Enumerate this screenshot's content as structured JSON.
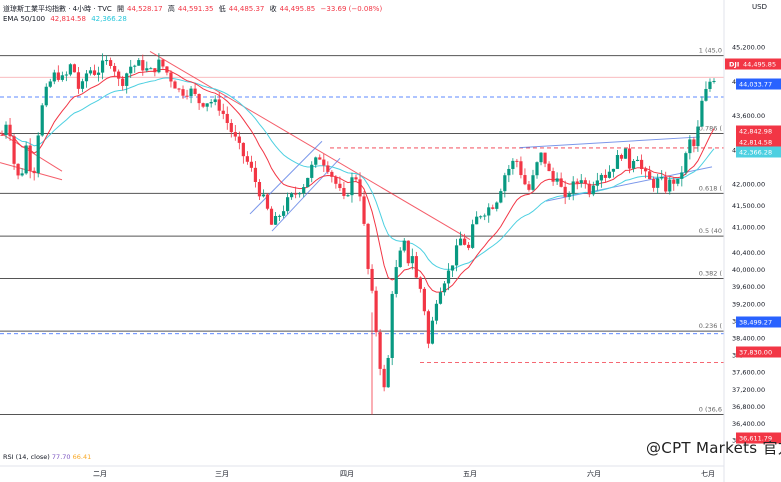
{
  "header": {
    "symbol": "道琼斯工業平均指數 · 4小時 · TVC",
    "open_label": "開",
    "open": "44,528.17",
    "high_label": "高",
    "high": "44,591.35",
    "low_label": "低",
    "low": "44,485.37",
    "close_label": "收",
    "close": "44,495.85",
    "change": "−33.69 (−0.08%)",
    "ema_label": "EMA 50/100",
    "ema50": "42,814.58",
    "ema100": "42,366.28",
    "currency": "USD"
  },
  "rsi": {
    "label": "RSI (14, close)",
    "v1": "77.70",
    "v2": "66.41"
  },
  "watermark": "@CPT Markets 官方",
  "colors": {
    "up": "#089981",
    "down": "#f23645",
    "ema50": "#f23645",
    "ema100": "#4dd0e1",
    "trend": "#5b7ee5",
    "fib": "#555555"
  },
  "chart_data": {
    "type": "candlestick",
    "title": "道琼斯工業平均指數 · 4小時 · TVC",
    "ylim": [
      36015,
      45600
    ],
    "x_labels": [
      "二月",
      "三月",
      "四月",
      "五月",
      "六月",
      "七月"
    ],
    "y_ticks": [
      "45,200.00",
      "44,400.00",
      "43,600.00",
      "42,800.00",
      "42,000.00",
      "41,500.00",
      "41,000.00",
      "40,400.00",
      "40,000.00",
      "39,600.00",
      "39,200.00",
      "38,800.00",
      "38,400.00",
      "38,000.00",
      "37,600.00",
      "37,200.00",
      "36,800.00",
      "36,400.00",
      "36,015.00"
    ],
    "fib_levels": [
      {
        "label": "1 (45,0",
        "value": 45000
      },
      {
        "label": "0.786 (",
        "value": 43180
      },
      {
        "label": "0.618 (",
        "value": 41780
      },
      {
        "label": "0.5 (40",
        "value": 40780
      },
      {
        "label": "0.382 (",
        "value": 39790
      },
      {
        "label": "0.236 (",
        "value": 38560
      },
      {
        "label": "0 (36,6",
        "value": 36611.79
      }
    ],
    "price_tags": [
      {
        "label": "DJI",
        "value": "44,495.85",
        "kind": "last",
        "color": "#f23645"
      },
      {
        "label": "",
        "value": "44,033.77",
        "kind": "dashed-blue",
        "color": "#2962ff"
      },
      {
        "label": "",
        "value": "42,842.98",
        "kind": "dashed-red",
        "color": "#f23645"
      },
      {
        "label": "",
        "value": "42,814.58",
        "kind": "ema50",
        "color": "#f23645"
      },
      {
        "label": "",
        "value": "42,366.28",
        "kind": "ema100",
        "color": "#4dd0e1"
      },
      {
        "label": "",
        "value": "38,499.27",
        "kind": "dashed-blue",
        "color": "#2962ff"
      },
      {
        "label": "",
        "value": "37,830.00",
        "kind": "dashed-red",
        "color": "#f23645"
      },
      {
        "label": "",
        "value": "36,611.79",
        "kind": "low",
        "color": "#f23645"
      }
    ],
    "ohlc": {
      "open": 44528.17,
      "high": 44591.35,
      "low": 44485.37,
      "close": 44495.85,
      "change": -33.69,
      "change_pct": -0.08
    },
    "ema50_last": 42814.58,
    "ema100_last": 42366.28,
    "anchors": [
      [
        0,
        43000
      ],
      [
        8,
        43600
      ],
      [
        14,
        42500
      ],
      [
        20,
        42000
      ],
      [
        26,
        42900
      ],
      [
        33,
        42100
      ],
      [
        40,
        43600
      ],
      [
        48,
        44300
      ],
      [
        56,
        44600
      ],
      [
        64,
        44400
      ],
      [
        72,
        44850
      ],
      [
        80,
        44100
      ],
      [
        88,
        44700
      ],
      [
        96,
        44600
      ],
      [
        104,
        44800
      ],
      [
        112,
        44900
      ],
      [
        120,
        44300
      ],
      [
        130,
        44750
      ],
      [
        140,
        44800
      ],
      [
        150,
        44600
      ],
      [
        160,
        44850
      ],
      [
        170,
        44500
      ],
      [
        180,
        44150
      ],
      [
        190,
        44200
      ],
      [
        200,
        43900
      ],
      [
        210,
        43950
      ],
      [
        220,
        43800
      ],
      [
        230,
        43300
      ],
      [
        240,
        42800
      ],
      [
        250,
        42400
      ],
      [
        258,
        41900
      ],
      [
        266,
        41500
      ],
      [
        272,
        41000
      ],
      [
        280,
        41300
      ],
      [
        288,
        41600
      ],
      [
        296,
        41800
      ],
      [
        304,
        42000
      ],
      [
        312,
        42400
      ],
      [
        320,
        42650
      ],
      [
        328,
        42400
      ],
      [
        336,
        42000
      ],
      [
        344,
        41600
      ],
      [
        352,
        42100
      ],
      [
        358,
        42200
      ],
      [
        364,
        41000
      ],
      [
        368,
        40000
      ],
      [
        372,
        39400
      ],
      [
        378,
        38200
      ],
      [
        382,
        37400
      ],
      [
        386,
        37000
      ],
      [
        392,
        39500
      ],
      [
        398,
        40200
      ],
      [
        404,
        40600
      ],
      [
        408,
        40200
      ],
      [
        412,
        40400
      ],
      [
        416,
        39800
      ],
      [
        420,
        39600
      ],
      [
        425,
        39000
      ],
      [
        428,
        38200
      ],
      [
        432,
        38700
      ],
      [
        436,
        39300
      ],
      [
        442,
        39700
      ],
      [
        448,
        39900
      ],
      [
        456,
        40400
      ],
      [
        462,
        40800
      ],
      [
        468,
        40400
      ],
      [
        474,
        41100
      ],
      [
        480,
        41300
      ],
      [
        486,
        41400
      ],
      [
        492,
        41500
      ],
      [
        498,
        41700
      ],
      [
        504,
        42200
      ],
      [
        510,
        42400
      ],
      [
        516,
        42600
      ],
      [
        522,
        42200
      ],
      [
        528,
        41800
      ],
      [
        534,
        42200
      ],
      [
        540,
        42700
      ],
      [
        546,
        42500
      ],
      [
        552,
        42000
      ],
      [
        558,
        42300
      ],
      [
        564,
        41500
      ],
      [
        570,
        41900
      ],
      [
        576,
        42000
      ],
      [
        582,
        42200
      ],
      [
        588,
        41800
      ],
      [
        594,
        42100
      ],
      [
        600,
        42300
      ],
      [
        606,
        42200
      ],
      [
        612,
        42400
      ],
      [
        618,
        42600
      ],
      [
        624,
        42800
      ],
      [
        630,
        42400
      ],
      [
        636,
        42800
      ],
      [
        642,
        42300
      ],
      [
        648,
        42100
      ],
      [
        654,
        42000
      ],
      [
        660,
        42100
      ],
      [
        666,
        41900
      ],
      [
        672,
        42100
      ],
      [
        678,
        42000
      ],
      [
        684,
        42500
      ],
      [
        690,
        43000
      ],
      [
        696,
        42800
      ],
      [
        700,
        43800
      ],
      [
        704,
        44000
      ],
      [
        708,
        44300
      ],
      [
        712,
        44500
      ]
    ]
  }
}
